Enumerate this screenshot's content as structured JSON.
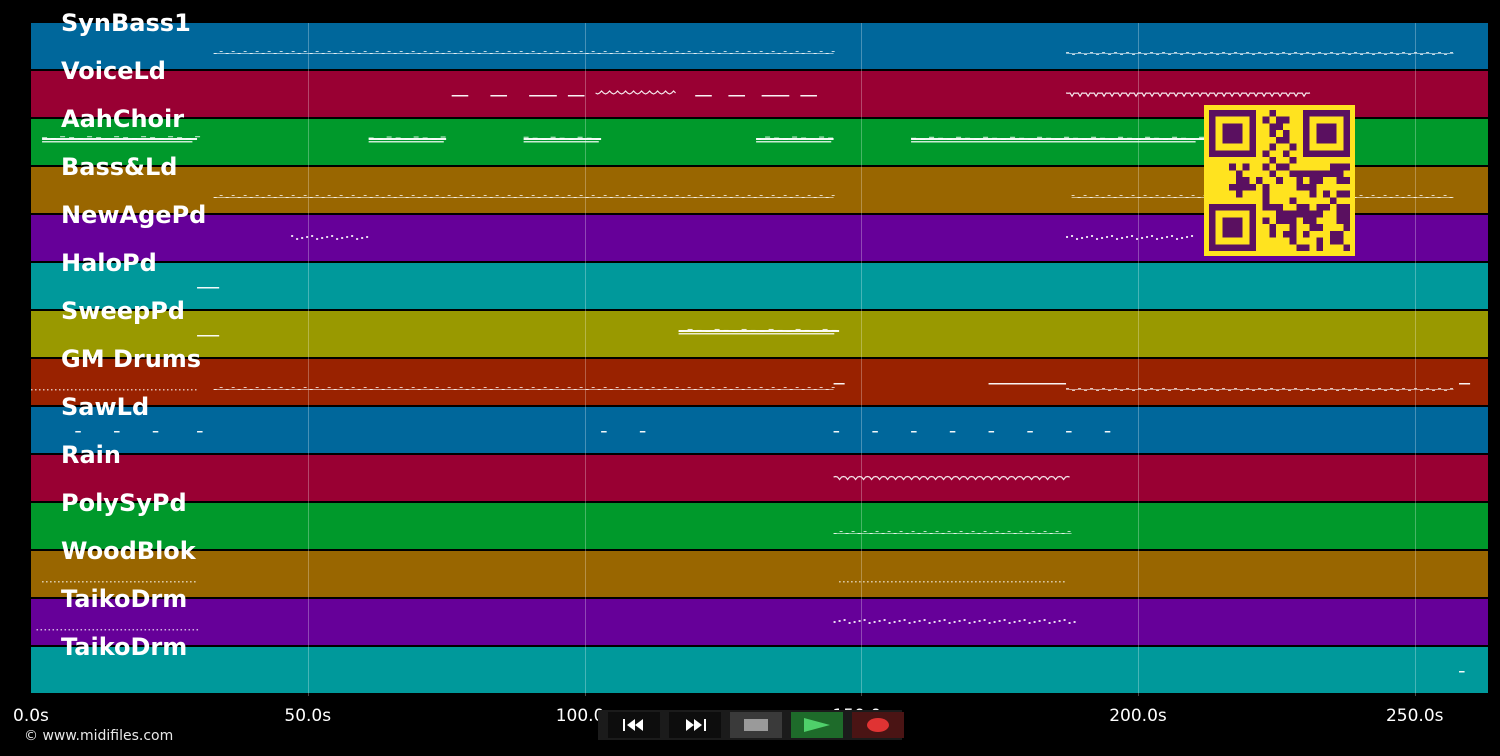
{
  "timeline": {
    "tick_labels": [
      "0.0s",
      "50.0s",
      "100.0s",
      "150.0s",
      "200.0s",
      "250.0s"
    ],
    "tick_seconds": [
      0,
      50,
      100,
      150,
      200,
      250
    ],
    "max_seconds": 263
  },
  "tracks": [
    {
      "name": "SynBass1",
      "color": "#00679b",
      "segments": [
        [
          33,
          145,
          "dense"
        ],
        [
          187,
          257,
          "dense"
        ]
      ]
    },
    {
      "name": "VoiceLd",
      "color": "#990033",
      "segments": [
        [
          76,
          79,
          "dash"
        ],
        [
          83,
          86,
          "dash"
        ],
        [
          90,
          95,
          "dash"
        ],
        [
          97,
          100,
          "dash"
        ],
        [
          102,
          116,
          "wave"
        ],
        [
          120,
          123,
          "dash"
        ],
        [
          126,
          129,
          "dash"
        ],
        [
          132,
          137,
          "dash"
        ],
        [
          139,
          142,
          "dash"
        ],
        [
          187,
          231,
          "wave"
        ]
      ]
    },
    {
      "name": "AahChoir",
      "color": "#00992b",
      "segments": [
        [
          2,
          30,
          "block"
        ],
        [
          61,
          75,
          "block"
        ],
        [
          89,
          103,
          "block"
        ],
        [
          131,
          145,
          "block"
        ],
        [
          159,
          212,
          "block"
        ]
      ]
    },
    {
      "name": "Bass&Ld",
      "color": "#996600",
      "segments": [
        [
          33,
          145,
          "dense"
        ],
        [
          188,
          257,
          "dense"
        ]
      ]
    },
    {
      "name": "NewAgePd",
      "color": "#660099",
      "segments": [
        [
          47,
          61,
          "sparse"
        ],
        [
          187,
          210,
          "sparse"
        ]
      ]
    },
    {
      "name": "HaloPd",
      "color": "#00999b",
      "segments": [
        [
          30,
          34,
          "dash"
        ]
      ]
    },
    {
      "name": "SweepPd",
      "color": "#999900",
      "segments": [
        [
          30,
          34,
          "dash"
        ],
        [
          117,
          146,
          "block"
        ]
      ]
    },
    {
      "name": "GM Drums",
      "color": "#992200",
      "segments": [
        [
          0,
          30,
          "dotted"
        ],
        [
          33,
          145,
          "dense"
        ],
        [
          145,
          147,
          "dash"
        ],
        [
          173,
          187,
          "dash"
        ],
        [
          187,
          257,
          "dense"
        ],
        [
          258,
          260,
          "dash"
        ]
      ]
    },
    {
      "name": "SawLd",
      "color": "#00679b",
      "segments": [
        [
          8,
          9,
          "dash"
        ],
        [
          15,
          16,
          "dash"
        ],
        [
          22,
          23,
          "dash"
        ],
        [
          30,
          31,
          "dash"
        ],
        [
          103,
          104,
          "dash"
        ],
        [
          110,
          111,
          "dash"
        ],
        [
          145,
          146,
          "dash"
        ],
        [
          152,
          153,
          "dash"
        ],
        [
          159,
          160,
          "dash"
        ],
        [
          166,
          167,
          "dash"
        ],
        [
          173,
          174,
          "dash"
        ],
        [
          180,
          181,
          "dash"
        ],
        [
          187,
          188,
          "dash"
        ],
        [
          194,
          195,
          "dash"
        ]
      ]
    },
    {
      "name": "Rain",
      "color": "#990033",
      "segments": [
        [
          145,
          187,
          "wave"
        ]
      ]
    },
    {
      "name": "PolySyPd",
      "color": "#00992b",
      "segments": [
        [
          145,
          188,
          "dense"
        ]
      ]
    },
    {
      "name": "WoodBlok",
      "color": "#996600",
      "segments": [
        [
          2,
          30,
          "dotted"
        ],
        [
          146,
          187,
          "dotted"
        ]
      ]
    },
    {
      "name": "TaikoDrm",
      "color": "#660099",
      "segments": [
        [
          1,
          30,
          "dotted"
        ],
        [
          145,
          189,
          "sparse"
        ]
      ]
    },
    {
      "name": "TaikoDrm",
      "color": "#00999b",
      "segments": [
        [
          258,
          259,
          "dash"
        ]
      ]
    }
  ],
  "footer": {
    "copyright": "© www.midifiles.com"
  },
  "transport": {
    "buttons": [
      {
        "name": "rewind",
        "icon": "rewind-icon",
        "color": "#0d0d0d"
      },
      {
        "name": "fast-forward",
        "icon": "fast-forward-icon",
        "color": "#0d0d0d"
      },
      {
        "name": "stop",
        "icon": "stop-icon",
        "color": "#3a3a3a"
      },
      {
        "name": "play",
        "icon": "play-icon",
        "color": "#1e6b2a"
      },
      {
        "name": "record",
        "icon": "record-icon",
        "color": "#4a1414"
      }
    ]
  },
  "qr": {
    "fg": "#5a1060",
    "bg": "#ffe31f"
  }
}
